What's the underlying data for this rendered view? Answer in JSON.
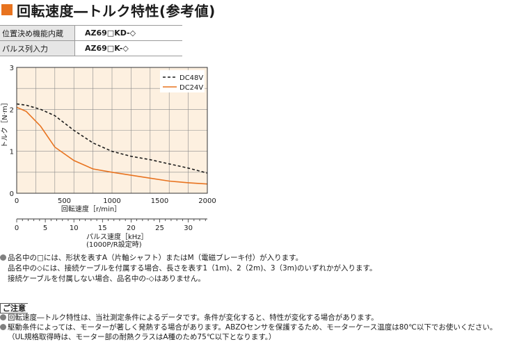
{
  "header": {
    "title": "回転速度―トルク特性(参考値)",
    "accent": "#e8731f"
  },
  "spec_table": [
    {
      "label": "位置決め機能内蔵",
      "model": "AZ69□KD-◇"
    },
    {
      "label": "パルス列入力",
      "model": "AZ69□K-◇"
    }
  ],
  "chart_data": {
    "type": "line",
    "x": [
      0,
      100,
      250,
      400,
      600,
      800,
      1000,
      1200,
      1400,
      1600,
      1800,
      2000
    ],
    "x2_ticks": [
      0,
      5,
      10,
      15,
      20,
      25,
      30
    ],
    "xlim": [
      0,
      2000
    ],
    "ylim": [
      0,
      3
    ],
    "x_ticks": [
      0,
      500,
      1000,
      1500,
      2000
    ],
    "y_ticks": [
      0,
      1,
      2,
      3
    ],
    "xlabel": "回転速度［r/min］",
    "x2label": "パルス速度［kHz］",
    "x2sublabel": "(1000P/R設定時)",
    "ylabel": "トルク［N·m］",
    "series": [
      {
        "name": "DC48V",
        "style": "dashed",
        "color": "#1a1a1a",
        "values": [
          2.13,
          2.1,
          2.0,
          1.85,
          1.5,
          1.2,
          1.0,
          0.88,
          0.8,
          0.7,
          0.6,
          0.48
        ]
      },
      {
        "name": "DC24V",
        "style": "solid",
        "color": "#e8731f",
        "values": [
          2.05,
          1.95,
          1.6,
          1.1,
          0.78,
          0.58,
          0.5,
          0.43,
          0.36,
          0.29,
          0.25,
          0.22
        ]
      }
    ],
    "plot_bg": "#fdf0e0",
    "grid": true,
    "legend_position": "top-right"
  },
  "notes": {
    "line1": "品名中の□には、形状を表すA（片軸シャフト）またはM（電磁ブレーキ付）が入ります。",
    "line2": "品名中の◇には、接続ケーブルを付属する場合、長さを表す1（1m)、2（2m)、3（3m)のいずれかが入ります。",
    "line3": "接続ケーブルを付属しない場合、品名中の-◇はありません。"
  },
  "caution": {
    "label": "ご注意",
    "line1": "回転速度―トルク特性は、当社測定条件によるデータです。条件が変化すると、特性が変化する場合があります。",
    "line2": "駆動条件によっては、モーターが著しく発熱する場合があります。ABZOセンサを保護するため、モーターケース温度は80℃以下でお使いください。",
    "line3": "（UL規格取得時は、モーター部の耐熱クラスはA種のため75℃以下となります。）"
  }
}
